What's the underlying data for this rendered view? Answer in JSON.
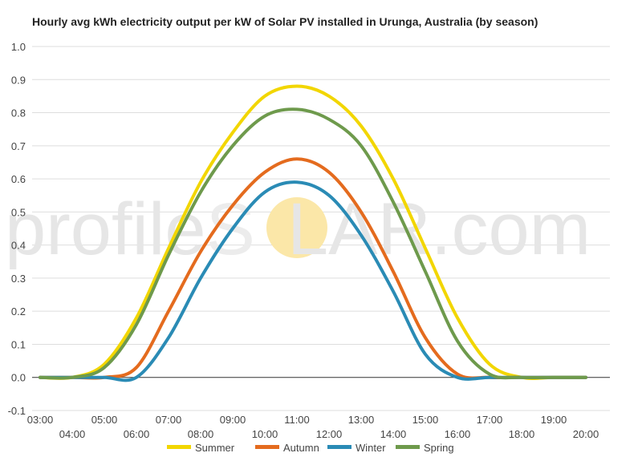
{
  "chart_data": {
    "type": "line",
    "title": "Hourly avg kWh electricity output per kW of Solar PV installed in Urunga, Australia (by season)",
    "xlabel": "",
    "ylabel": "",
    "ylim": [
      -0.1,
      1.0
    ],
    "yticks": [
      "1.0",
      "0.9",
      "0.8",
      "0.7",
      "0.6",
      "0.5",
      "0.4",
      "0.3",
      "0.2",
      "0.1",
      "0.0",
      "-0.1"
    ],
    "ytick_values": [
      1.0,
      0.9,
      0.8,
      0.7,
      0.6,
      0.5,
      0.4,
      0.3,
      0.2,
      0.1,
      0.0,
      -0.1
    ],
    "x": [
      3,
      4,
      5,
      6,
      7,
      8,
      9,
      10,
      11,
      12,
      13,
      14,
      15,
      16,
      17,
      18,
      19,
      20
    ],
    "xtick_labels": [
      "03:00",
      "04:00",
      "05:00",
      "06:00",
      "07:00",
      "08:00",
      "09:00",
      "10:00",
      "11:00",
      "12:00",
      "13:00",
      "14:00",
      "15:00",
      "16:00",
      "17:00",
      "18:00",
      "19:00",
      "20:00"
    ],
    "grid": true,
    "legend": "bottom",
    "series": [
      {
        "name": "Summer",
        "color": "#f2d600",
        "values": [
          0.0,
          0.0,
          0.04,
          0.18,
          0.39,
          0.59,
          0.74,
          0.85,
          0.88,
          0.85,
          0.76,
          0.6,
          0.39,
          0.18,
          0.04,
          0.0,
          0.0,
          0.0
        ]
      },
      {
        "name": "Autumn",
        "color": "#e46b1e",
        "values": [
          0.0,
          0.0,
          0.0,
          0.03,
          0.2,
          0.38,
          0.52,
          0.62,
          0.66,
          0.62,
          0.5,
          0.32,
          0.12,
          0.01,
          0.0,
          0.0,
          0.0,
          0.0
        ]
      },
      {
        "name": "Winter",
        "color": "#2a8bb5",
        "values": [
          0.0,
          0.0,
          0.0,
          0.0,
          0.12,
          0.3,
          0.45,
          0.56,
          0.59,
          0.55,
          0.43,
          0.26,
          0.07,
          0.0,
          0.0,
          0.0,
          0.0,
          0.0
        ]
      },
      {
        "name": "Spring",
        "color": "#6e9a4c",
        "values": [
          0.0,
          0.0,
          0.03,
          0.16,
          0.37,
          0.56,
          0.7,
          0.79,
          0.81,
          0.78,
          0.7,
          0.53,
          0.32,
          0.11,
          0.01,
          0.0,
          0.0,
          0.0
        ]
      }
    ]
  },
  "watermark": {
    "left": "profile",
    "middle": "S",
    "right": "LAR.com",
    "sun_color": "#fbe7a8"
  }
}
